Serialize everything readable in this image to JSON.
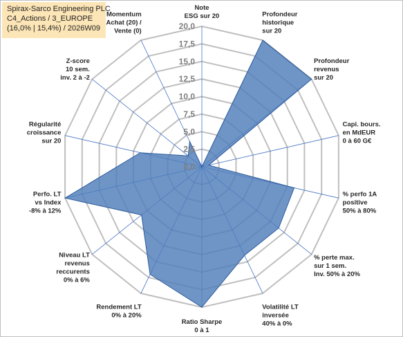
{
  "title_box": {
    "line1": "Spirax-Sarco Engineering PLC",
    "line2": "C4_Actions / 3_EUROPE",
    "line3": "(16,0% | 15,4%) / 2026W09"
  },
  "chart_data": {
    "type": "radar",
    "rmin": 0,
    "rmax": 20,
    "ticks": [
      "0,0",
      "2,5",
      "5,0",
      "7,5",
      "10,0",
      "12,5",
      "15,0",
      "17,5",
      "20,0"
    ],
    "tick_values": [
      0,
      2.5,
      5,
      7.5,
      10,
      12.5,
      15,
      17.5,
      20
    ],
    "grid": true,
    "colors": {
      "fill": "#4f7ebb",
      "stroke": "#2e5b99",
      "grid": "#bfbfbf",
      "spoke": "#4472c4"
    },
    "axes": [
      {
        "label": [
          "Note",
          "ESG sur 20"
        ],
        "value": 0
      },
      {
        "label": [
          "Profondeur",
          "historique",
          "sur 20"
        ],
        "value": 20
      },
      {
        "label": [
          "Profondeur",
          "revenus",
          "sur 20"
        ],
        "value": 20
      },
      {
        "label": [
          "Capi. bours.",
          "en MdEUR",
          "0 à 60 G€"
        ],
        "value": 1
      },
      {
        "label": [
          "% perfo 1A",
          "positive",
          "50% à 80%"
        ],
        "value": 13.5
      },
      {
        "label": [
          "% perte max.",
          "sur 1 sem.",
          "Inv. 50% à 20%"
        ],
        "value": 14
      },
      {
        "label": [
          "Volatilité LT",
          "inversée",
          "40% à 0%"
        ],
        "value": 14
      },
      {
        "label": [
          "Ratio Sharpe",
          "0 à 1"
        ],
        "value": 20
      },
      {
        "label": [
          "Rendement LT",
          "0% à 20%"
        ],
        "value": 17
      },
      {
        "label": [
          "Niveau LT",
          "revenus",
          "reccurents",
          "0% à 6%"
        ],
        "value": 11
      },
      {
        "label": [
          "Perfo. LT",
          "vs Index",
          "-8% à 12%"
        ],
        "value": 20
      },
      {
        "label": [
          "Régularité",
          "croissance",
          "sur 20"
        ],
        "value": 9
      },
      {
        "label": [
          "Z-score",
          "10 sem.",
          "inv. 2 à -2"
        ],
        "value": 2.5
      },
      {
        "label": [
          "Momentum",
          "Achat (20) /",
          "Vente (0)"
        ],
        "value": 4
      }
    ]
  }
}
